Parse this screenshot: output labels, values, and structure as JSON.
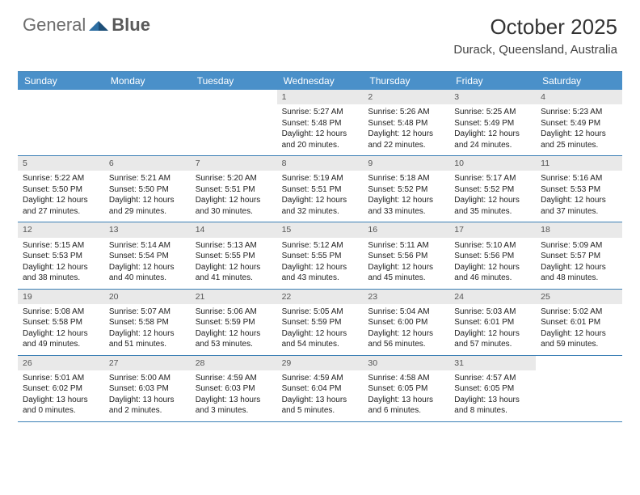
{
  "brand": {
    "word1": "General",
    "word2": "Blue"
  },
  "title": "October 2025",
  "location": "Durack, Queensland, Australia",
  "colors": {
    "header_bg": "#4a90c9",
    "header_text": "#ffffff",
    "rule": "#3b7fb5",
    "daynum_bg": "#e9e9e9",
    "logo_gray": "#6d6d6d",
    "logo_blue": "#2e6fa3",
    "text": "#333333"
  },
  "day_names": [
    "Sunday",
    "Monday",
    "Tuesday",
    "Wednesday",
    "Thursday",
    "Friday",
    "Saturday"
  ],
  "weeks": [
    [
      {
        "empty": true
      },
      {
        "empty": true
      },
      {
        "empty": true
      },
      {
        "day": "1",
        "sunrise": "Sunrise: 5:27 AM",
        "sunset": "Sunset: 5:48 PM",
        "daylight1": "Daylight: 12 hours",
        "daylight2": "and 20 minutes."
      },
      {
        "day": "2",
        "sunrise": "Sunrise: 5:26 AM",
        "sunset": "Sunset: 5:48 PM",
        "daylight1": "Daylight: 12 hours",
        "daylight2": "and 22 minutes."
      },
      {
        "day": "3",
        "sunrise": "Sunrise: 5:25 AM",
        "sunset": "Sunset: 5:49 PM",
        "daylight1": "Daylight: 12 hours",
        "daylight2": "and 24 minutes."
      },
      {
        "day": "4",
        "sunrise": "Sunrise: 5:23 AM",
        "sunset": "Sunset: 5:49 PM",
        "daylight1": "Daylight: 12 hours",
        "daylight2": "and 25 minutes."
      }
    ],
    [
      {
        "day": "5",
        "sunrise": "Sunrise: 5:22 AM",
        "sunset": "Sunset: 5:50 PM",
        "daylight1": "Daylight: 12 hours",
        "daylight2": "and 27 minutes."
      },
      {
        "day": "6",
        "sunrise": "Sunrise: 5:21 AM",
        "sunset": "Sunset: 5:50 PM",
        "daylight1": "Daylight: 12 hours",
        "daylight2": "and 29 minutes."
      },
      {
        "day": "7",
        "sunrise": "Sunrise: 5:20 AM",
        "sunset": "Sunset: 5:51 PM",
        "daylight1": "Daylight: 12 hours",
        "daylight2": "and 30 minutes."
      },
      {
        "day": "8",
        "sunrise": "Sunrise: 5:19 AM",
        "sunset": "Sunset: 5:51 PM",
        "daylight1": "Daylight: 12 hours",
        "daylight2": "and 32 minutes."
      },
      {
        "day": "9",
        "sunrise": "Sunrise: 5:18 AM",
        "sunset": "Sunset: 5:52 PM",
        "daylight1": "Daylight: 12 hours",
        "daylight2": "and 33 minutes."
      },
      {
        "day": "10",
        "sunrise": "Sunrise: 5:17 AM",
        "sunset": "Sunset: 5:52 PM",
        "daylight1": "Daylight: 12 hours",
        "daylight2": "and 35 minutes."
      },
      {
        "day": "11",
        "sunrise": "Sunrise: 5:16 AM",
        "sunset": "Sunset: 5:53 PM",
        "daylight1": "Daylight: 12 hours",
        "daylight2": "and 37 minutes."
      }
    ],
    [
      {
        "day": "12",
        "sunrise": "Sunrise: 5:15 AM",
        "sunset": "Sunset: 5:53 PM",
        "daylight1": "Daylight: 12 hours",
        "daylight2": "and 38 minutes."
      },
      {
        "day": "13",
        "sunrise": "Sunrise: 5:14 AM",
        "sunset": "Sunset: 5:54 PM",
        "daylight1": "Daylight: 12 hours",
        "daylight2": "and 40 minutes."
      },
      {
        "day": "14",
        "sunrise": "Sunrise: 5:13 AM",
        "sunset": "Sunset: 5:55 PM",
        "daylight1": "Daylight: 12 hours",
        "daylight2": "and 41 minutes."
      },
      {
        "day": "15",
        "sunrise": "Sunrise: 5:12 AM",
        "sunset": "Sunset: 5:55 PM",
        "daylight1": "Daylight: 12 hours",
        "daylight2": "and 43 minutes."
      },
      {
        "day": "16",
        "sunrise": "Sunrise: 5:11 AM",
        "sunset": "Sunset: 5:56 PM",
        "daylight1": "Daylight: 12 hours",
        "daylight2": "and 45 minutes."
      },
      {
        "day": "17",
        "sunrise": "Sunrise: 5:10 AM",
        "sunset": "Sunset: 5:56 PM",
        "daylight1": "Daylight: 12 hours",
        "daylight2": "and 46 minutes."
      },
      {
        "day": "18",
        "sunrise": "Sunrise: 5:09 AM",
        "sunset": "Sunset: 5:57 PM",
        "daylight1": "Daylight: 12 hours",
        "daylight2": "and 48 minutes."
      }
    ],
    [
      {
        "day": "19",
        "sunrise": "Sunrise: 5:08 AM",
        "sunset": "Sunset: 5:58 PM",
        "daylight1": "Daylight: 12 hours",
        "daylight2": "and 49 minutes."
      },
      {
        "day": "20",
        "sunrise": "Sunrise: 5:07 AM",
        "sunset": "Sunset: 5:58 PM",
        "daylight1": "Daylight: 12 hours",
        "daylight2": "and 51 minutes."
      },
      {
        "day": "21",
        "sunrise": "Sunrise: 5:06 AM",
        "sunset": "Sunset: 5:59 PM",
        "daylight1": "Daylight: 12 hours",
        "daylight2": "and 53 minutes."
      },
      {
        "day": "22",
        "sunrise": "Sunrise: 5:05 AM",
        "sunset": "Sunset: 5:59 PM",
        "daylight1": "Daylight: 12 hours",
        "daylight2": "and 54 minutes."
      },
      {
        "day": "23",
        "sunrise": "Sunrise: 5:04 AM",
        "sunset": "Sunset: 6:00 PM",
        "daylight1": "Daylight: 12 hours",
        "daylight2": "and 56 minutes."
      },
      {
        "day": "24",
        "sunrise": "Sunrise: 5:03 AM",
        "sunset": "Sunset: 6:01 PM",
        "daylight1": "Daylight: 12 hours",
        "daylight2": "and 57 minutes."
      },
      {
        "day": "25",
        "sunrise": "Sunrise: 5:02 AM",
        "sunset": "Sunset: 6:01 PM",
        "daylight1": "Daylight: 12 hours",
        "daylight2": "and 59 minutes."
      }
    ],
    [
      {
        "day": "26",
        "sunrise": "Sunrise: 5:01 AM",
        "sunset": "Sunset: 6:02 PM",
        "daylight1": "Daylight: 13 hours",
        "daylight2": "and 0 minutes."
      },
      {
        "day": "27",
        "sunrise": "Sunrise: 5:00 AM",
        "sunset": "Sunset: 6:03 PM",
        "daylight1": "Daylight: 13 hours",
        "daylight2": "and 2 minutes."
      },
      {
        "day": "28",
        "sunrise": "Sunrise: 4:59 AM",
        "sunset": "Sunset: 6:03 PM",
        "daylight1": "Daylight: 13 hours",
        "daylight2": "and 3 minutes."
      },
      {
        "day": "29",
        "sunrise": "Sunrise: 4:59 AM",
        "sunset": "Sunset: 6:04 PM",
        "daylight1": "Daylight: 13 hours",
        "daylight2": "and 5 minutes."
      },
      {
        "day": "30",
        "sunrise": "Sunrise: 4:58 AM",
        "sunset": "Sunset: 6:05 PM",
        "daylight1": "Daylight: 13 hours",
        "daylight2": "and 6 minutes."
      },
      {
        "day": "31",
        "sunrise": "Sunrise: 4:57 AM",
        "sunset": "Sunset: 6:05 PM",
        "daylight1": "Daylight: 13 hours",
        "daylight2": "and 8 minutes."
      },
      {
        "empty": true
      }
    ]
  ]
}
